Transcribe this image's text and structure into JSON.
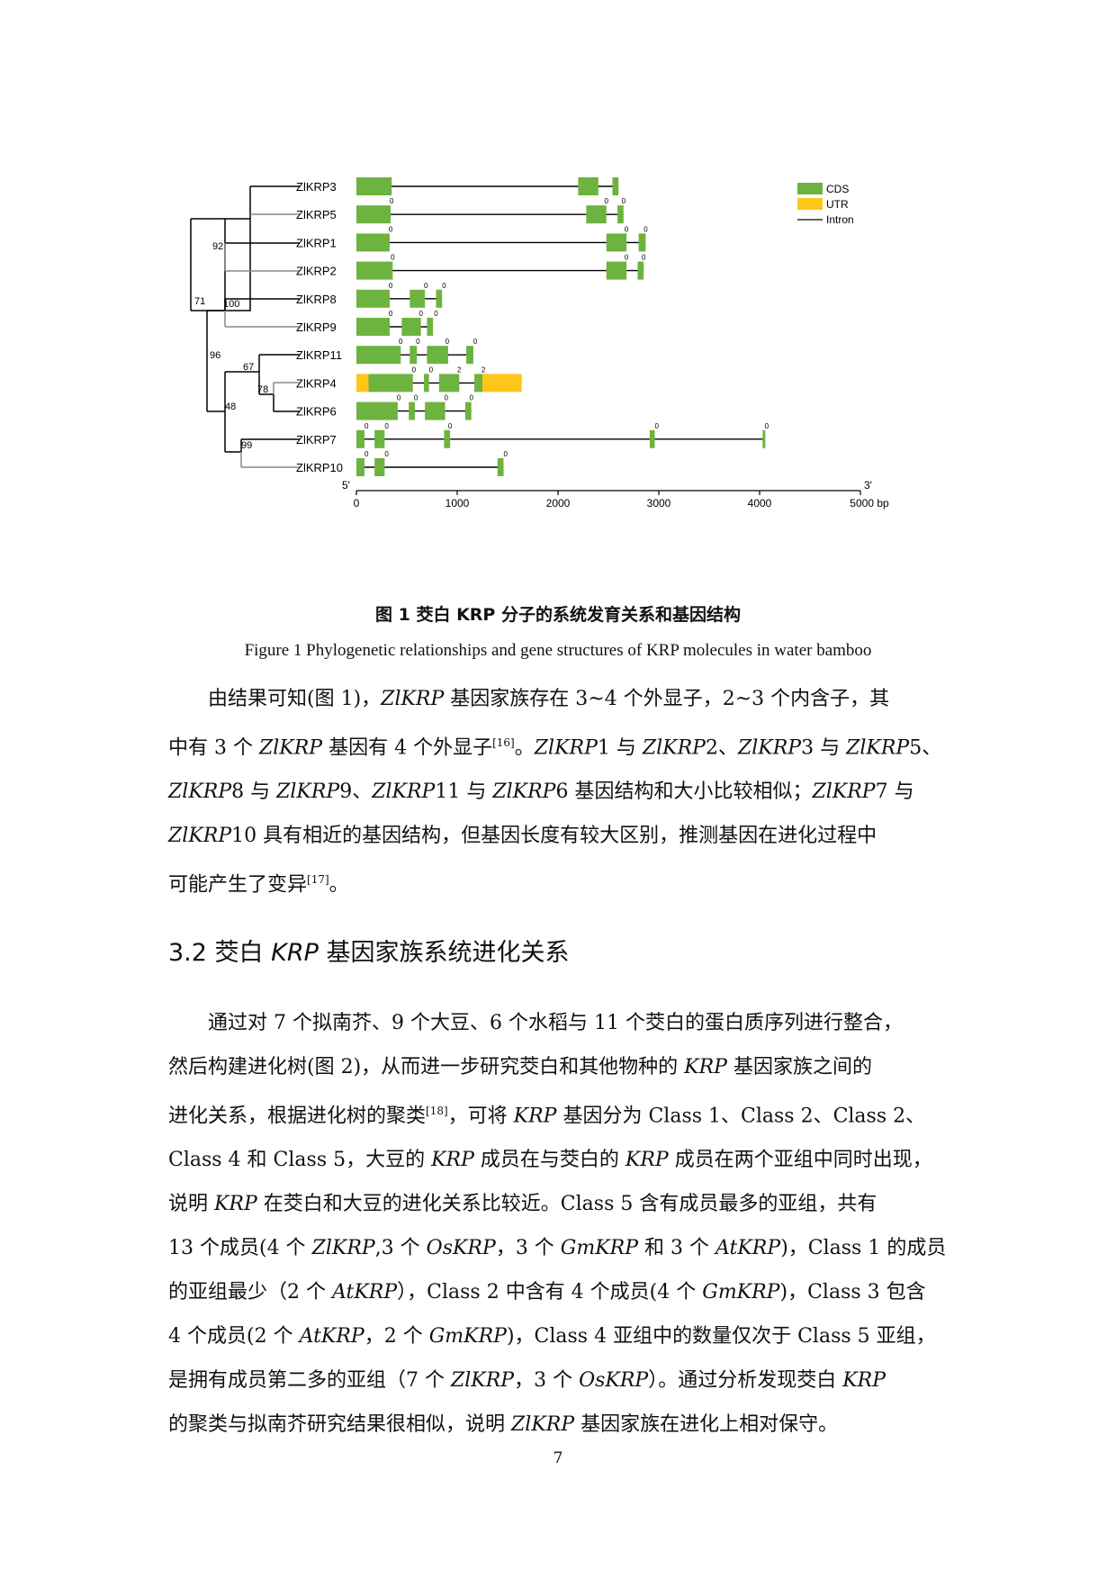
{
  "figure": {
    "genes": [
      "ZlKRP3",
      "ZlKRP5",
      "ZlKRP1",
      "ZlKRP2",
      "ZlKRP8",
      "ZlKRP9",
      "ZlKRP11",
      "ZlKRP4",
      "ZlKRP6",
      "ZlKRP7",
      "ZlKRP10"
    ],
    "bootstrap": [
      "92",
      "71",
      "100",
      "96",
      "67",
      "78",
      "48",
      "99"
    ],
    "legend": {
      "cds": "CDS",
      "utr": "UTR",
      "intron": "Intron"
    },
    "axis": {
      "ticks": [
        "0",
        "1000",
        "2000",
        "3000",
        "4000",
        "5000 bp"
      ],
      "five_prime": "5'",
      "three_prime": "3'"
    },
    "colors": {
      "cds": "#6db33f",
      "utr": "#ffc61a"
    },
    "chart_data": {
      "type": "gene-structure",
      "xlim": [
        0,
        5000
      ],
      "unit": "bp",
      "genes": [
        {
          "name": "ZlKRP3",
          "length": 2600,
          "exons": [
            [
              0,
              350
            ],
            [
              2200,
              2400
            ],
            [
              2540,
              2600
            ]
          ],
          "utr": [],
          "phases": [
            [
              "360",
              "0"
            ],
            [
              "2400",
              "0"
            ],
            [
              "2600",
              "0"
            ]
          ]
        },
        {
          "name": "ZlKRP5",
          "length": 2650,
          "exons": [
            [
              0,
              340
            ],
            [
              2280,
              2480
            ],
            [
              2590,
              2650
            ]
          ],
          "utr": [],
          "phases": [
            [
              "350",
              "0"
            ],
            [
              "2480",
              "0"
            ],
            [
              "2650",
              "0"
            ]
          ]
        },
        {
          "name": "ZlKRP1",
          "length": 2870,
          "exons": [
            [
              0,
              330
            ],
            [
              2480,
              2680
            ],
            [
              2800,
              2870
            ]
          ],
          "utr": [],
          "phases": [
            [
              "340",
              "0"
            ],
            [
              "2680",
              "0"
            ],
            [
              "2870",
              "0"
            ]
          ]
        },
        {
          "name": "ZlKRP2",
          "length": 2850,
          "exons": [
            [
              0,
              360
            ],
            [
              2480,
              2680
            ],
            [
              2790,
              2850
            ]
          ],
          "utr": [],
          "phases": [
            [
              "360",
              "0"
            ],
            [
              "2680",
              "0"
            ],
            [
              "2850",
              "0"
            ]
          ]
        },
        {
          "name": "ZlKRP8",
          "length": 850,
          "exons": [
            [
              0,
              330
            ],
            [
              530,
              680
            ],
            [
              790,
              850
            ]
          ],
          "utr": [],
          "phases": [
            [
              "340",
              "0"
            ],
            [
              "690",
              "0"
            ],
            [
              "870",
              "0"
            ]
          ]
        },
        {
          "name": "ZlKRP9",
          "length": 760,
          "exons": [
            [
              0,
              330
            ],
            [
              450,
              640
            ],
            [
              700,
              760
            ]
          ],
          "utr": [],
          "phases": [
            [
              "340",
              "0"
            ],
            [
              "640",
              "0"
            ],
            [
              "790",
              "0"
            ]
          ]
        },
        {
          "name": "ZlKRP11",
          "length": 1160,
          "exons": [
            [
              0,
              440
            ],
            [
              530,
              600
            ],
            [
              700,
              910
            ],
            [
              1090,
              1160
            ]
          ],
          "utr": [],
          "phases": [
            [
              "440",
              "0"
            ],
            [
              "610",
              "0"
            ],
            [
              "900",
              "0"
            ],
            [
              "1180",
              "0"
            ]
          ]
        },
        {
          "name": "ZlKRP4",
          "length": 1640,
          "exons": [
            [
              120,
              560
            ],
            [
              670,
              720
            ],
            [
              820,
              1020
            ],
            [
              1170,
              1250
            ]
          ],
          "utr": [
            [
              0,
              120
            ],
            [
              1250,
              1640
            ]
          ],
          "phases": [
            [
              "570",
              "0"
            ],
            [
              "740",
              "0"
            ],
            [
              "1020",
              "2"
            ],
            [
              "1260",
              "2"
            ]
          ]
        },
        {
          "name": "ZlKRP6",
          "length": 1140,
          "exons": [
            [
              0,
              410
            ],
            [
              520,
              580
            ],
            [
              680,
              880
            ],
            [
              1080,
              1140
            ]
          ],
          "utr": [],
          "phases": [
            [
              "420",
              "0"
            ],
            [
              "590",
              "0"
            ],
            [
              "890",
              "0"
            ],
            [
              "1140",
              "0"
            ]
          ]
        },
        {
          "name": "ZlKRP7",
          "length": 4050,
          "exons": [
            [
              0,
              80
            ],
            [
              180,
              280
            ],
            [
              870,
              930
            ],
            [
              2910,
              2960
            ],
            [
              4030,
              4050
            ]
          ],
          "utr": [],
          "phases": [
            [
              "100",
              "0"
            ],
            [
              "300",
              "0"
            ],
            [
              "930",
              "0"
            ],
            [
              "2980",
              "0"
            ],
            [
              "4070",
              "0"
            ]
          ]
        },
        {
          "name": "ZlKRP10",
          "length": 1460,
          "exons": [
            [
              0,
              80
            ],
            [
              180,
              280
            ],
            [
              1400,
              1460
            ]
          ],
          "utr": [],
          "phases": [
            [
              "100",
              "0"
            ],
            [
              "300",
              "0"
            ],
            [
              "1480",
              "0"
            ]
          ]
        }
      ]
    }
  },
  "caption_cn": "图 1 茭白 KRP 分子的系统发育关系和基因结构",
  "caption_en": "Figure 1 Phylogenetic relationships and gene structures of KRP molecules in water bamboo",
  "heading": {
    "num": "3.2 茭白 ",
    "kw": "KRP",
    "rest": " 基因家族系统进化关系"
  },
  "page_number": "7"
}
